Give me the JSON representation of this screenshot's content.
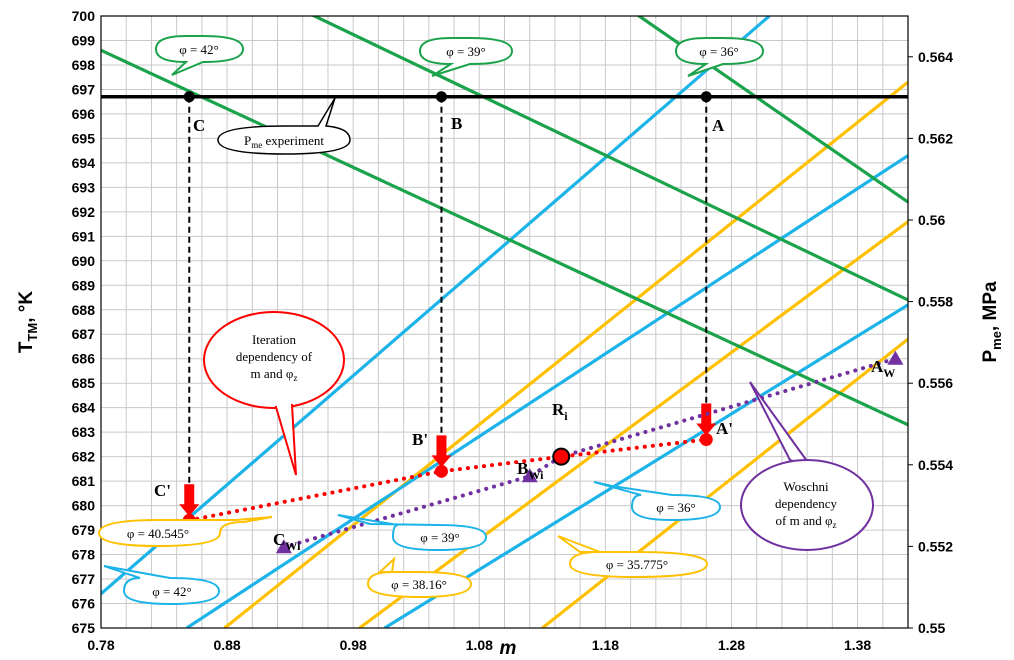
{
  "chart_data": {
    "type": "line",
    "xlabel": "m",
    "ylabel_left": {
      "main": "T",
      "sub": "TM",
      "rest": ", °K"
    },
    "ylabel_right": {
      "main": "P",
      "sub": "me",
      "rest": ", MPa"
    },
    "xlim": [
      0.78,
      1.42
    ],
    "ylim_left": [
      675,
      700
    ],
    "ylim_right": [
      0.55,
      0.565
    ],
    "x_ticks": [
      "0.78",
      "0.88",
      "0.98",
      "1.08",
      "1.18",
      "1.28",
      "1.38"
    ],
    "x_tick_values": [
      0.78,
      0.88,
      0.98,
      1.08,
      1.18,
      1.28,
      1.38
    ],
    "y_left_ticks": [
      675,
      676,
      677,
      678,
      679,
      680,
      681,
      682,
      683,
      684,
      685,
      686,
      687,
      688,
      689,
      690,
      691,
      692,
      693,
      694,
      695,
      696,
      697,
      698,
      699,
      700
    ],
    "y_right_ticks": [
      "0.55",
      "0.552",
      "0.554",
      "0.556",
      "0.558",
      "0.56",
      "0.562",
      "0.564"
    ],
    "y_right_tick_values": [
      0.55,
      0.552,
      0.554,
      0.556,
      0.558,
      0.56,
      0.562,
      0.564
    ],
    "grid": true,
    "colors": {
      "green": "#1aa34a",
      "blue": "#1cb3e8",
      "orange": "#ffc000",
      "red": "#ff0000",
      "purple": "#7030a0",
      "black": "#000000"
    },
    "pme_experiment_T": 696.7,
    "green_lines": [
      {
        "phi": "42°",
        "points": [
          [
            0.78,
            698.6
          ],
          [
            1.42,
            683.3
          ]
        ]
      },
      {
        "phi": "39°",
        "points": [
          [
            0.86,
            702.2
          ],
          [
            1.42,
            688.4
          ]
        ]
      },
      {
        "phi": "36°",
        "points": [
          [
            1.145,
            702.2
          ],
          [
            1.42,
            692.4
          ]
        ]
      }
    ],
    "blue_lines": [
      {
        "phi": "42°",
        "points": [
          [
            0.78,
            676.4
          ],
          [
            1.31,
            700.0
          ]
        ]
      },
      {
        "phi": "39°",
        "points": [
          [
            0.848,
            675.0
          ],
          [
            1.42,
            694.3
          ]
        ]
      },
      {
        "phi": "36°",
        "points": [
          [
            1.005,
            675.0
          ],
          [
            1.42,
            688.2
          ]
        ]
      }
    ],
    "orange_lines": [
      {
        "phi": "40.545°",
        "points": [
          [
            0.878,
            675.0
          ],
          [
            1.42,
            697.3
          ]
        ]
      },
      {
        "phi": "38.16°",
        "points": [
          [
            0.985,
            675.0
          ],
          [
            1.42,
            691.6
          ]
        ]
      },
      {
        "phi": "35.775°",
        "points": [
          [
            1.13,
            675.0
          ],
          [
            1.42,
            686.8
          ]
        ]
      }
    ],
    "iteration_dependency": {
      "name": "Iteration dependency of m and φz",
      "points": [
        [
          0.85,
          679.4
        ],
        [
          1.05,
          681.4
        ],
        [
          1.145,
          682.0
        ],
        [
          1.26,
          682.7
        ]
      ]
    },
    "woschni_dependency": {
      "name": "Woschni dependency of m and φz",
      "points": [
        [
          0.925,
          678.3
        ],
        [
          1.12,
          681.2
        ],
        [
          1.145,
          682.0
        ],
        [
          1.41,
          686.0
        ]
      ]
    },
    "points": [
      {
        "label": "A",
        "x": 1.26,
        "T": 696.7
      },
      {
        "label": "B",
        "x": 1.05,
        "T": 696.7
      },
      {
        "label": "C",
        "x": 0.85,
        "T": 696.7
      },
      {
        "label": "A'",
        "x": 1.26,
        "T": 682.7
      },
      {
        "label": "B'",
        "x": 1.05,
        "T": 681.4
      },
      {
        "label": "C'",
        "x": 0.85,
        "T": 679.4
      },
      {
        "label": "Ri",
        "x": 1.145,
        "T": 682.0
      },
      {
        "label": "AW",
        "x": 1.41,
        "T": 686.0
      },
      {
        "label": "BWi",
        "x": 1.12,
        "T": 681.2
      },
      {
        "label": "CWi",
        "x": 0.925,
        "T": 678.3
      }
    ],
    "callouts": {
      "green_42": "φ = 42°",
      "green_39": "φ = 39°",
      "green_36": "φ = 36°",
      "pme_experiment": {
        "main": "P",
        "sub": "me",
        "rest": " experiment"
      },
      "iteration": {
        "line1": "Iteration",
        "line2": "dependency of",
        "line3_main": "m and φ",
        "line3_sub": "z"
      },
      "woschni": {
        "line1": "Woschni",
        "line2": "dependency",
        "line3_main": "of m and φ",
        "line3_sub": "z"
      },
      "blue_36": "φ = 36°",
      "blue_39": "φ = 39°",
      "blue_42": "φ = 42°",
      "orange_40545": "φ = 40.545°",
      "orange_3816": "φ = 38.16°",
      "orange_35775": "φ = 35.775°"
    },
    "point_labels": {
      "A": "A",
      "B": "B",
      "C": "C",
      "A_prime": "A'",
      "B_prime": "B'",
      "C_prime": "C'",
      "R_main": "R",
      "R_sub": "i",
      "AW_main": "A",
      "AW_sub": "W",
      "BWi_main": "B",
      "BWi_sub": "Wi",
      "CWi_main": "C",
      "CWi_sub": "Wi"
    }
  }
}
